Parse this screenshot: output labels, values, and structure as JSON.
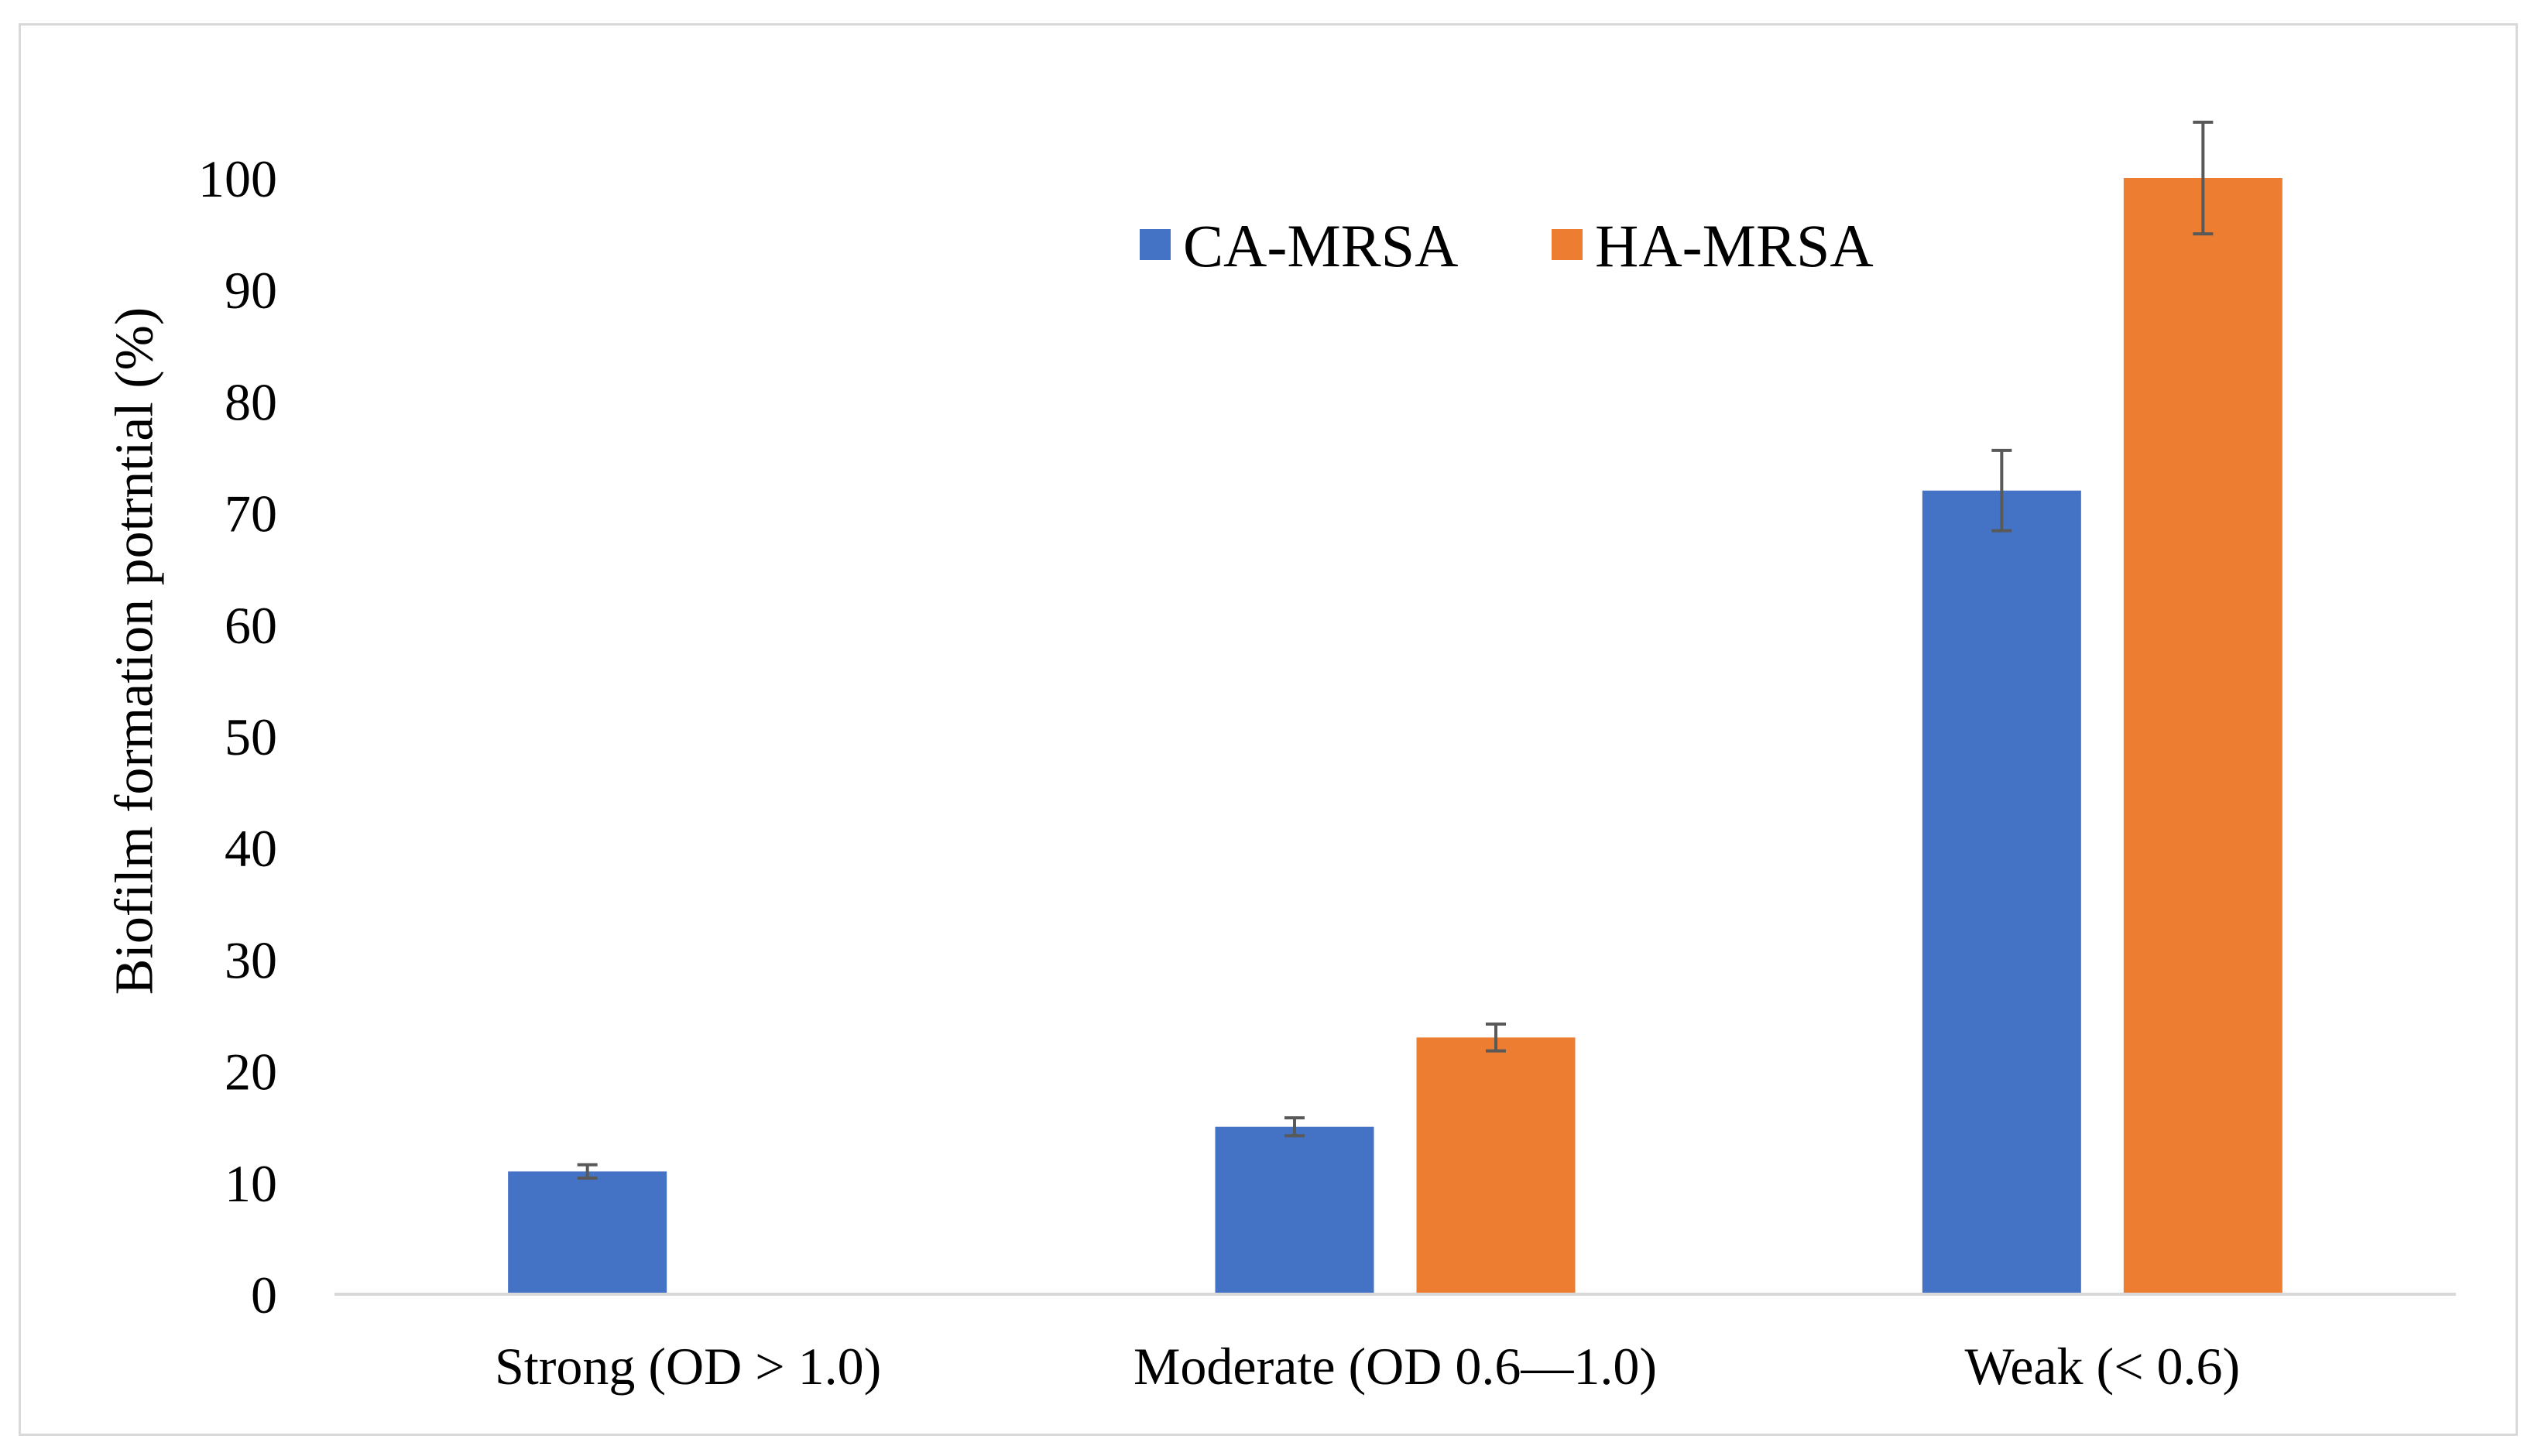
{
  "chart_data": {
    "type": "bar",
    "title": "",
    "xlabel": "",
    "ylabel": "Biofilm formation potrntial (%)",
    "ylim": [
      0,
      100
    ],
    "yticks": [
      0,
      10,
      20,
      30,
      40,
      50,
      60,
      70,
      80,
      90,
      100
    ],
    "categories": [
      "Strong (OD > 1.0)",
      "Moderate (OD 0.6—1.0)",
      "Weak (< 0.6)"
    ],
    "series": [
      {
        "name": "CA-MRSA",
        "color": "#4472c4",
        "values": [
          11,
          15,
          72
        ],
        "errors": [
          0.6,
          0.8,
          3.6
        ]
      },
      {
        "name": "HA-MRSA",
        "color": "#ed7d31",
        "values": [
          0,
          23,
          100
        ],
        "errors": [
          0,
          1.2,
          5
        ]
      }
    ],
    "legend_position": "top-center",
    "grid": false
  }
}
